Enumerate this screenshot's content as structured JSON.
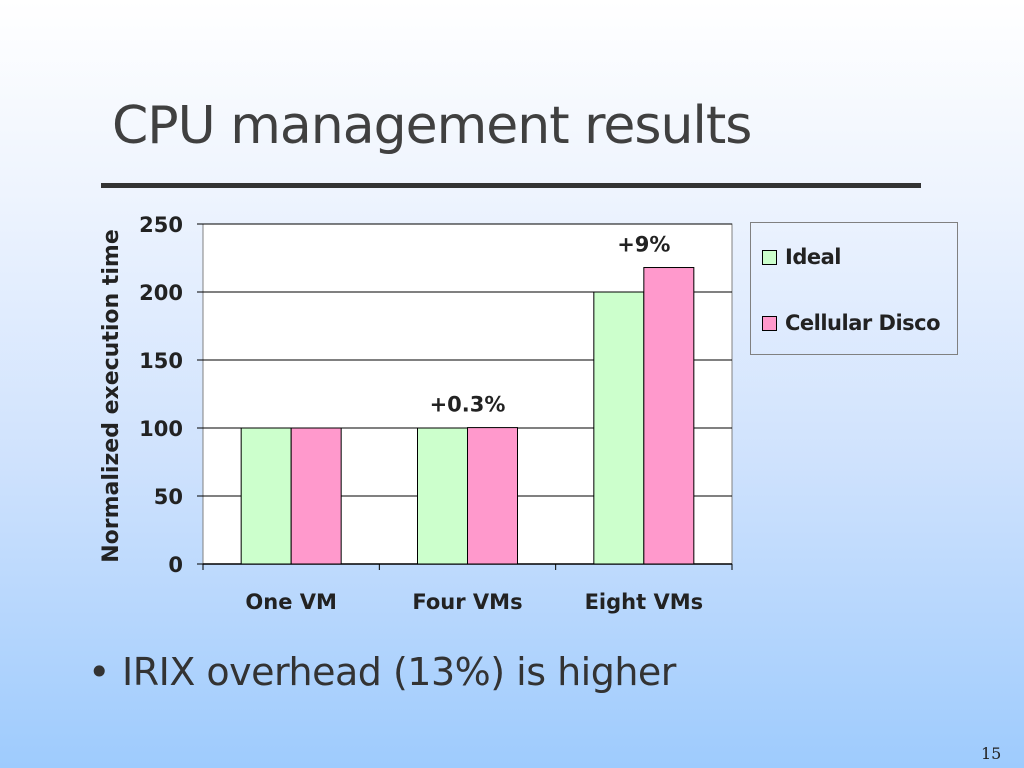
{
  "slide": {
    "title": "CPU management results",
    "bullet": "IRIX overhead (13%) is higher",
    "bullet_symbol": "•",
    "page_number": "15"
  },
  "chart_data": {
    "type": "bar",
    "title": "",
    "xlabel": "",
    "ylabel": "Normalized execution time",
    "categories": [
      "One VM",
      "Four VMs",
      "Eight VMs"
    ],
    "series": [
      {
        "name": "Ideal",
        "values": [
          100,
          100,
          200
        ],
        "color": "#ccffcc"
      },
      {
        "name": "Cellular Disco",
        "values": [
          100,
          100.3,
          218
        ],
        "color": "#ff99cc"
      }
    ],
    "annotations": [
      {
        "category": "Four VMs",
        "text": "+0.3%"
      },
      {
        "category": "Eight VMs",
        "text": "+9%"
      }
    ],
    "ylim": [
      0,
      250
    ],
    "yticks": [
      0,
      50,
      100,
      150,
      200,
      250
    ],
    "grid": true,
    "legend_position": "right"
  }
}
